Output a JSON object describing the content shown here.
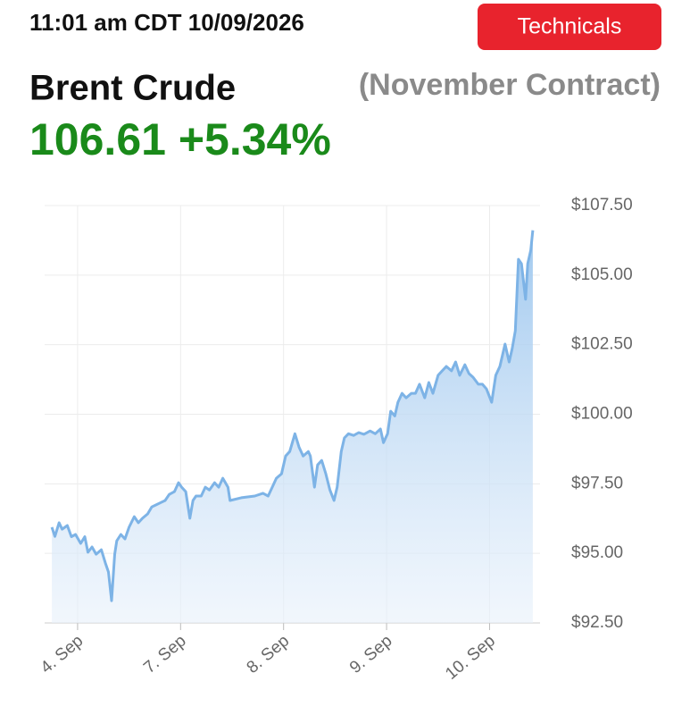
{
  "header": {
    "timestamp": "11:01 am CDT 10/09/2026",
    "button": "Technicals",
    "price": "106.61",
    "change": "+5.34%"
  },
  "chart_data": {
    "type": "area",
    "title": "Brent Crude",
    "subtitle": "(November Contract)",
    "color": "#7db3e6",
    "x": [
      -0.25,
      -0.22,
      -0.18,
      -0.15,
      -0.1,
      -0.06,
      -0.02,
      0.03,
      0.07,
      0.1,
      0.14,
      0.18,
      0.23,
      0.27,
      0.3,
      0.33,
      0.36,
      0.38,
      0.42,
      0.46,
      0.5,
      0.55,
      0.59,
      0.63,
      0.68,
      0.72,
      0.76,
      0.81,
      0.85,
      0.89,
      0.94,
      0.98,
      1.01,
      1.05,
      1.09,
      1.12,
      1.15,
      1.2,
      1.24,
      1.28,
      1.33,
      1.37,
      1.41,
      1.46,
      1.48,
      1.59,
      1.72,
      1.8,
      1.85,
      1.89,
      1.93,
      1.98,
      2.02,
      2.06,
      2.11,
      2.15,
      2.19,
      2.24,
      2.26,
      2.3,
      2.33,
      2.37,
      2.41,
      2.45,
      2.49,
      2.52,
      2.56,
      2.59,
      2.63,
      2.68,
      2.73,
      2.78,
      2.84,
      2.89,
      2.94,
      2.97,
      3.01,
      3.04,
      3.08,
      3.11,
      3.15,
      3.19,
      3.24,
      3.28,
      3.32,
      3.37,
      3.41,
      3.45,
      3.5,
      3.54,
      3.58,
      3.63,
      3.67,
      3.71,
      3.76,
      3.8,
      3.84,
      3.89,
      3.93,
      3.97,
      4.02,
      4.06,
      4.1,
      4.15,
      4.19,
      4.22,
      4.25,
      4.28,
      4.31,
      4.35,
      4.37,
      4.4,
      4.42
    ],
    "values": [
      95.94,
      95.61,
      96.1,
      95.87,
      96.0,
      95.6,
      95.68,
      95.36,
      95.6,
      95.04,
      95.23,
      94.97,
      95.13,
      94.65,
      94.33,
      93.3,
      94.97,
      95.45,
      95.68,
      95.52,
      95.94,
      96.32,
      96.1,
      96.26,
      96.42,
      96.67,
      96.74,
      96.83,
      96.9,
      97.12,
      97.22,
      97.54,
      97.38,
      97.22,
      96.26,
      96.9,
      97.06,
      97.06,
      97.38,
      97.28,
      97.54,
      97.38,
      97.7,
      97.38,
      96.9,
      97.0,
      97.06,
      97.16,
      97.06,
      97.38,
      97.7,
      97.86,
      98.5,
      98.66,
      99.3,
      98.82,
      98.5,
      98.66,
      98.5,
      97.38,
      98.18,
      98.34,
      97.86,
      97.28,
      96.9,
      97.38,
      98.66,
      99.15,
      99.3,
      99.24,
      99.34,
      99.28,
      99.4,
      99.3,
      99.47,
      98.98,
      99.3,
      100.11,
      99.94,
      100.43,
      100.75,
      100.59,
      100.75,
      100.75,
      101.08,
      100.59,
      101.14,
      100.75,
      101.4,
      101.56,
      101.72,
      101.56,
      101.88,
      101.4,
      101.78,
      101.46,
      101.33,
      101.08,
      101.08,
      100.91,
      100.43,
      101.4,
      101.72,
      102.52,
      101.88,
      102.36,
      103.0,
      105.57,
      105.41,
      104.13,
      105.41,
      105.89,
      106.61
    ],
    "xlim": [
      -0.32,
      4.49
    ],
    "xticks": [
      {
        "value": 0,
        "label": "4. Sep"
      },
      {
        "value": 1,
        "label": "7. Sep"
      },
      {
        "value": 2,
        "label": "8. Sep"
      },
      {
        "value": 3,
        "label": "9. Sep"
      },
      {
        "value": 4,
        "label": "10. Sep"
      }
    ],
    "ylim": [
      92.5,
      107.5
    ],
    "yticks": [
      {
        "value": 92.5,
        "label": "$92.50"
      },
      {
        "value": 95,
        "label": "$95.00"
      },
      {
        "value": 97.5,
        "label": "$97.50"
      },
      {
        "value": 100,
        "label": "$100.00"
      },
      {
        "value": 102.5,
        "label": "$102.50"
      },
      {
        "value": 105,
        "label": "$105.00"
      },
      {
        "value": 107.5,
        "label": "$107.50"
      }
    ],
    "grid": true
  }
}
